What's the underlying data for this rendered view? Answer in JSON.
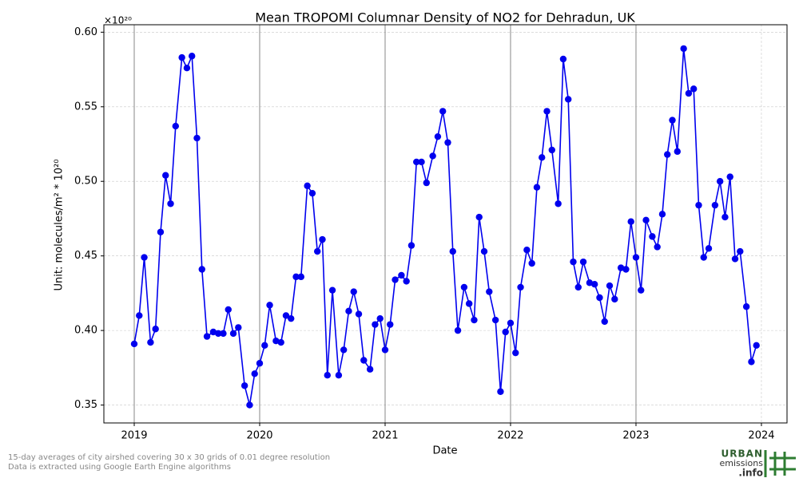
{
  "chart_data": {
    "type": "line",
    "title": "Mean TROPOMI Columnar Density of NO2 for Dehradun, UK",
    "xlabel": "Date",
    "ylabel": "Unit: molecules/m² * 10²⁰",
    "y_offset_label": "×10²⁰",
    "x": [
      2019.0,
      2019.04,
      2019.08,
      2019.13,
      2019.17,
      2019.21,
      2019.25,
      2019.29,
      2019.33,
      2019.38,
      2019.42,
      2019.46,
      2019.5,
      2019.54,
      2019.58,
      2019.63,
      2019.67,
      2019.71,
      2019.75,
      2019.79,
      2019.83,
      2019.88,
      2019.92,
      2019.96,
      2020.0,
      2020.04,
      2020.08,
      2020.13,
      2020.17,
      2020.21,
      2020.25,
      2020.29,
      2020.33,
      2020.38,
      2020.42,
      2020.46,
      2020.5,
      2020.54,
      2020.58,
      2020.63,
      2020.67,
      2020.71,
      2020.75,
      2020.79,
      2020.83,
      2020.88,
      2020.92,
      2020.96,
      2021.0,
      2021.04,
      2021.08,
      2021.13,
      2021.17,
      2021.21,
      2021.25,
      2021.29,
      2021.33,
      2021.38,
      2021.42,
      2021.46,
      2021.5,
      2021.54,
      2021.58,
      2021.63,
      2021.67,
      2021.71,
      2021.75,
      2021.79,
      2021.83,
      2021.88,
      2021.92,
      2021.96,
      2022.0,
      2022.04,
      2022.08,
      2022.13,
      2022.17,
      2022.21,
      2022.25,
      2022.29,
      2022.33,
      2022.38,
      2022.42,
      2022.46,
      2022.5,
      2022.54,
      2022.58,
      2022.63,
      2022.67,
      2022.71,
      2022.75,
      2022.79,
      2022.83,
      2022.88,
      2022.92,
      2022.96,
      2023.0,
      2023.04,
      2023.08,
      2023.13,
      2023.17,
      2023.21,
      2023.25,
      2023.29,
      2023.33,
      2023.38,
      2023.42,
      2023.46,
      2023.5,
      2023.54,
      2023.58,
      2023.63,
      2023.67,
      2023.71,
      2023.75,
      2023.79,
      2023.83,
      2023.88,
      2023.92,
      2023.96
    ],
    "series": [
      {
        "color": "#0000ee",
        "values": [
          0.391,
          0.41,
          0.449,
          0.392,
          0.401,
          0.466,
          0.504,
          0.485,
          0.537,
          0.583,
          0.576,
          0.584,
          0.529,
          0.441,
          0.396,
          0.399,
          0.398,
          0.398,
          0.414,
          0.398,
          0.402,
          0.363,
          0.35,
          0.371,
          0.378,
          0.39,
          0.417,
          0.393,
          0.392,
          0.41,
          0.408,
          0.436,
          0.436,
          0.497,
          0.492,
          0.453,
          0.461,
          0.37,
          0.427,
          0.37,
          0.387,
          0.413,
          0.426,
          0.411,
          0.38,
          0.374,
          0.404,
          0.408,
          0.387,
          0.404,
          0.434,
          0.437,
          0.433,
          0.457,
          0.513,
          0.513,
          0.499,
          0.517,
          0.53,
          0.547,
          0.526,
          0.453,
          0.4,
          0.429,
          0.418,
          0.407,
          0.476,
          0.453,
          0.426,
          0.407,
          0.359,
          0.399,
          0.405,
          0.385,
          0.429,
          0.454,
          0.445,
          0.496,
          0.516,
          0.547,
          0.521,
          0.485,
          0.582,
          0.555,
          0.446,
          0.429,
          0.446,
          0.432,
          0.431,
          0.422,
          0.406,
          0.43,
          0.421,
          0.442,
          0.441,
          0.473,
          0.449,
          0.427,
          0.474,
          0.463,
          0.456,
          0.478,
          0.518,
          0.541,
          0.52,
          0.589,
          0.559,
          0.562,
          0.484,
          0.449,
          0.455,
          0.484,
          0.5,
          0.476,
          0.503,
          0.448,
          0.453,
          0.416,
          0.379,
          0.39
        ]
      }
    ],
    "xlim": [
      2018.758,
      2024.204
    ],
    "ylim": [
      0.338,
      0.605
    ],
    "xticks": [
      2019,
      2020,
      2021,
      2022,
      2023,
      2024
    ],
    "yticks": [
      0.35,
      {
        "value": 0.4,
        "label": "0.40"
      },
      0.45,
      {
        "value": 0.5,
        "label": "0.50"
      },
      0.55,
      {
        "value": 0.6,
        "label": "0.60"
      }
    ],
    "year_lines": [
      2019,
      2020,
      2021,
      2022,
      2023
    ],
    "grid": true
  },
  "footnotes": [
    "15-day averages of city airshed covering 30 x 30 grids of 0.01 degree resolution",
    "Data is extracted using Google Earth Engine algorithms"
  ],
  "logo": {
    "line1": "URBAN",
    "line2": "emissions",
    "line3": ".info"
  }
}
